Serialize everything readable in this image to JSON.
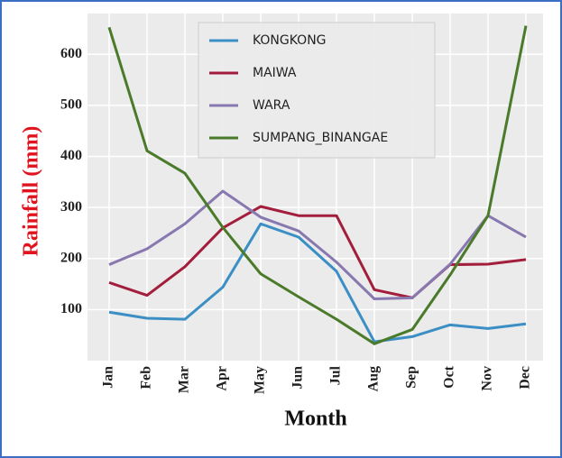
{
  "chart_data": {
    "type": "line",
    "x_label": "Month",
    "y_label": "Rainfall (mm)",
    "categories": [
      "Jan",
      "Feb",
      "Mar",
      "Apr",
      "May",
      "Jun",
      "Jul",
      "Aug",
      "Sep",
      "Oct",
      "Nov",
      "Dec"
    ],
    "series": [
      {
        "name": "KONGKONG",
        "color": "#3b8fc4",
        "values": [
          95,
          83,
          81,
          144,
          268,
          242,
          175,
          37,
          47,
          70,
          63,
          72
        ]
      },
      {
        "name": "MAIWA",
        "color": "#a31d3c",
        "values": [
          153,
          128,
          184,
          260,
          302,
          284,
          284,
          139,
          123,
          188,
          189,
          198
        ]
      },
      {
        "name": "WARA",
        "color": "#8878b0",
        "values": [
          188,
          219,
          268,
          332,
          281,
          254,
          193,
          121,
          123,
          189,
          284,
          242
        ]
      },
      {
        "name": "SUMPANG_BINANGAE",
        "color": "#4a7a2a",
        "values": [
          653,
          411,
          367,
          261,
          170,
          125,
          81,
          33,
          61,
          168,
          284,
          656
        ]
      }
    ],
    "ylim": [
      0,
      680
    ],
    "yticks": [
      100,
      200,
      300,
      400,
      500,
      600
    ],
    "grid": true,
    "legend": "upper center"
  }
}
